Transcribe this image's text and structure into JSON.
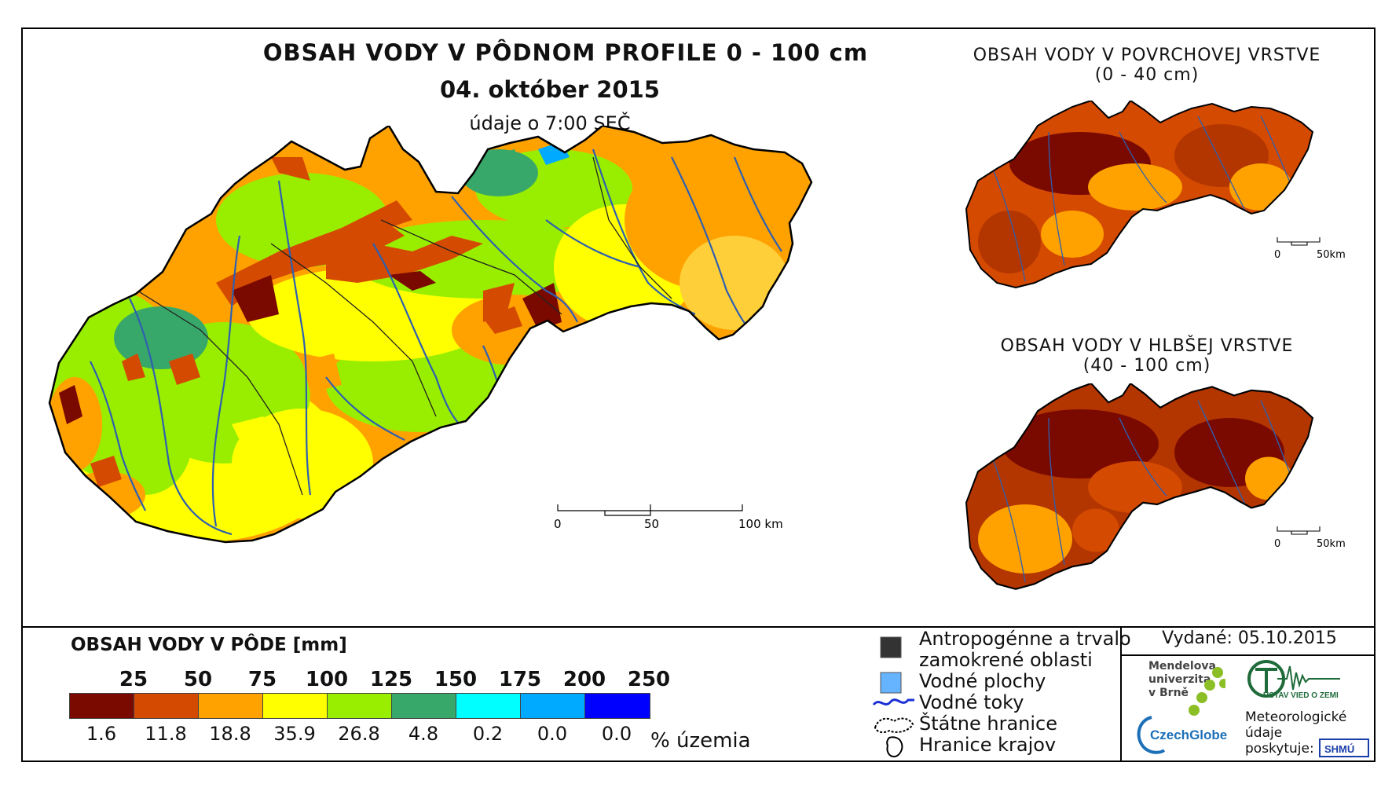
{
  "main_map": {
    "title": "OBSAH VODY V PÔDNOM PROFILE 0 - 100 cm",
    "date": "04. október 2015",
    "subtitle": "údaje o 7:00 SEČ",
    "scale": {
      "labels": [
        "0",
        "50",
        "100 km"
      ]
    }
  },
  "surface_map": {
    "title_line1": "OBSAH VODY V POVRCHOVEJ VRSTVE",
    "title_line2": "(0 - 40 cm)",
    "scale": {
      "labels": [
        "0",
        "50km"
      ]
    }
  },
  "deep_map": {
    "title_line1": "OBSAH VODY V HLBŠEJ VRSTVE",
    "title_line2": "(40 - 100 cm)",
    "scale": {
      "labels": [
        "0",
        "50km"
      ]
    }
  },
  "legend": {
    "title": "OBSAH VODY V PÔDE [mm]",
    "thresholds": [
      "25",
      "50",
      "75",
      "100",
      "125",
      "150",
      "175",
      "200",
      "250"
    ],
    "classes": [
      {
        "color": "#7a0a00",
        "percent": "1.6"
      },
      {
        "color": "#d44a00",
        "percent": "11.8"
      },
      {
        "color": "#ffa200",
        "percent": "18.8"
      },
      {
        "color": "#ffff00",
        "percent": "35.9"
      },
      {
        "color": "#99ee00",
        "percent": "26.8"
      },
      {
        "color": "#38a86a",
        "percent": "4.8"
      },
      {
        "color": "#00ffff",
        "percent": "0.2"
      },
      {
        "color": "#00aaff",
        "percent": "0.0"
      },
      {
        "color": "#0000ff",
        "percent": "0.0"
      }
    ],
    "unit": "% územia"
  },
  "keys": {
    "anthropogenic_line1": "Antropogénne a trvalo",
    "anthropogenic_line2": "zamokrené oblasti",
    "water_bodies": "Vodné plochy",
    "streams": "Vodné toky",
    "state_border": "Štátne hranice",
    "regional_border": "Hranice krajov"
  },
  "info": {
    "issued": "Vydané: 05.10.2015",
    "mendel_line1": "Mendelova",
    "mendel_line2": "univerzita",
    "mendel_line3": "v Brně",
    "czechglobe": "CzechGlobe",
    "institute": "ÚSTAV VIED O ZEMI",
    "meteo_line1": "Meteorologické",
    "meteo_line2": "údaje",
    "meteo_line3": "poskytuje:",
    "shmu": "SHMÚ"
  },
  "colors": {
    "map_regions_main": [
      "#ffa200",
      "#ffff00",
      "#99ee00",
      "#d44a00",
      "#7a0a00",
      "#38a86a",
      "#ffcf3a"
    ],
    "map_regions_small": [
      "#d44a00",
      "#b33600",
      "#7a0a00",
      "#ffa200"
    ],
    "river": "#2e5fb0",
    "border": "#222222"
  }
}
